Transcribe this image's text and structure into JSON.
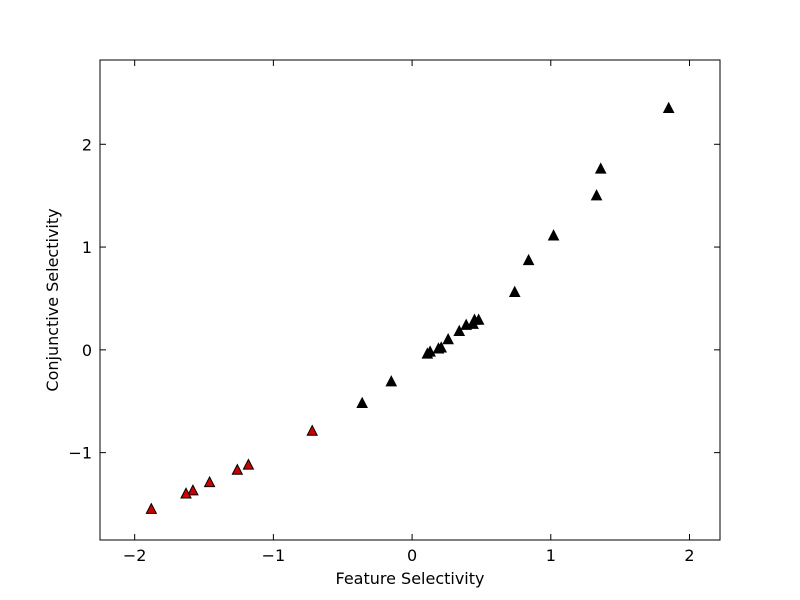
{
  "chart_data": {
    "type": "scatter",
    "title": "",
    "xlabel": "Feature Selectivity",
    "ylabel": "Conjunctive Selectivity",
    "xlim": [
      -2.25,
      2.22
    ],
    "ylim": [
      -1.85,
      2.82
    ],
    "xticks": [
      -2,
      -1,
      0,
      1,
      2
    ],
    "yticks": [
      -1,
      0,
      1,
      2
    ],
    "xtick_labels": [
      "−2",
      "−1",
      "0",
      "1",
      "2"
    ],
    "ytick_labels": [
      "−1",
      "0",
      "1",
      "2"
    ],
    "grid": false,
    "legend": "none",
    "marker": "triangle",
    "series": [
      {
        "color": "#000000",
        "x": [
          1.85,
          1.36,
          1.33,
          1.02,
          0.84,
          0.74,
          0.48,
          0.45,
          0.44,
          0.39,
          0.34,
          0.26,
          0.21,
          0.19,
          0.13,
          0.11,
          -0.15,
          -0.36
        ],
        "y": [
          2.35,
          1.76,
          1.5,
          1.11,
          0.87,
          0.56,
          0.29,
          0.29,
          0.25,
          0.24,
          0.18,
          0.1,
          0.02,
          0.01,
          -0.02,
          -0.04,
          -0.31,
          -0.52
        ]
      },
      {
        "color": "#cc0000",
        "x": [
          -0.72,
          -1.18,
          -1.26,
          -1.46,
          -1.58,
          -1.63,
          -1.88
        ],
        "y": [
          -0.79,
          -1.12,
          -1.17,
          -1.29,
          -1.37,
          -1.4,
          -1.55
        ]
      }
    ]
  }
}
